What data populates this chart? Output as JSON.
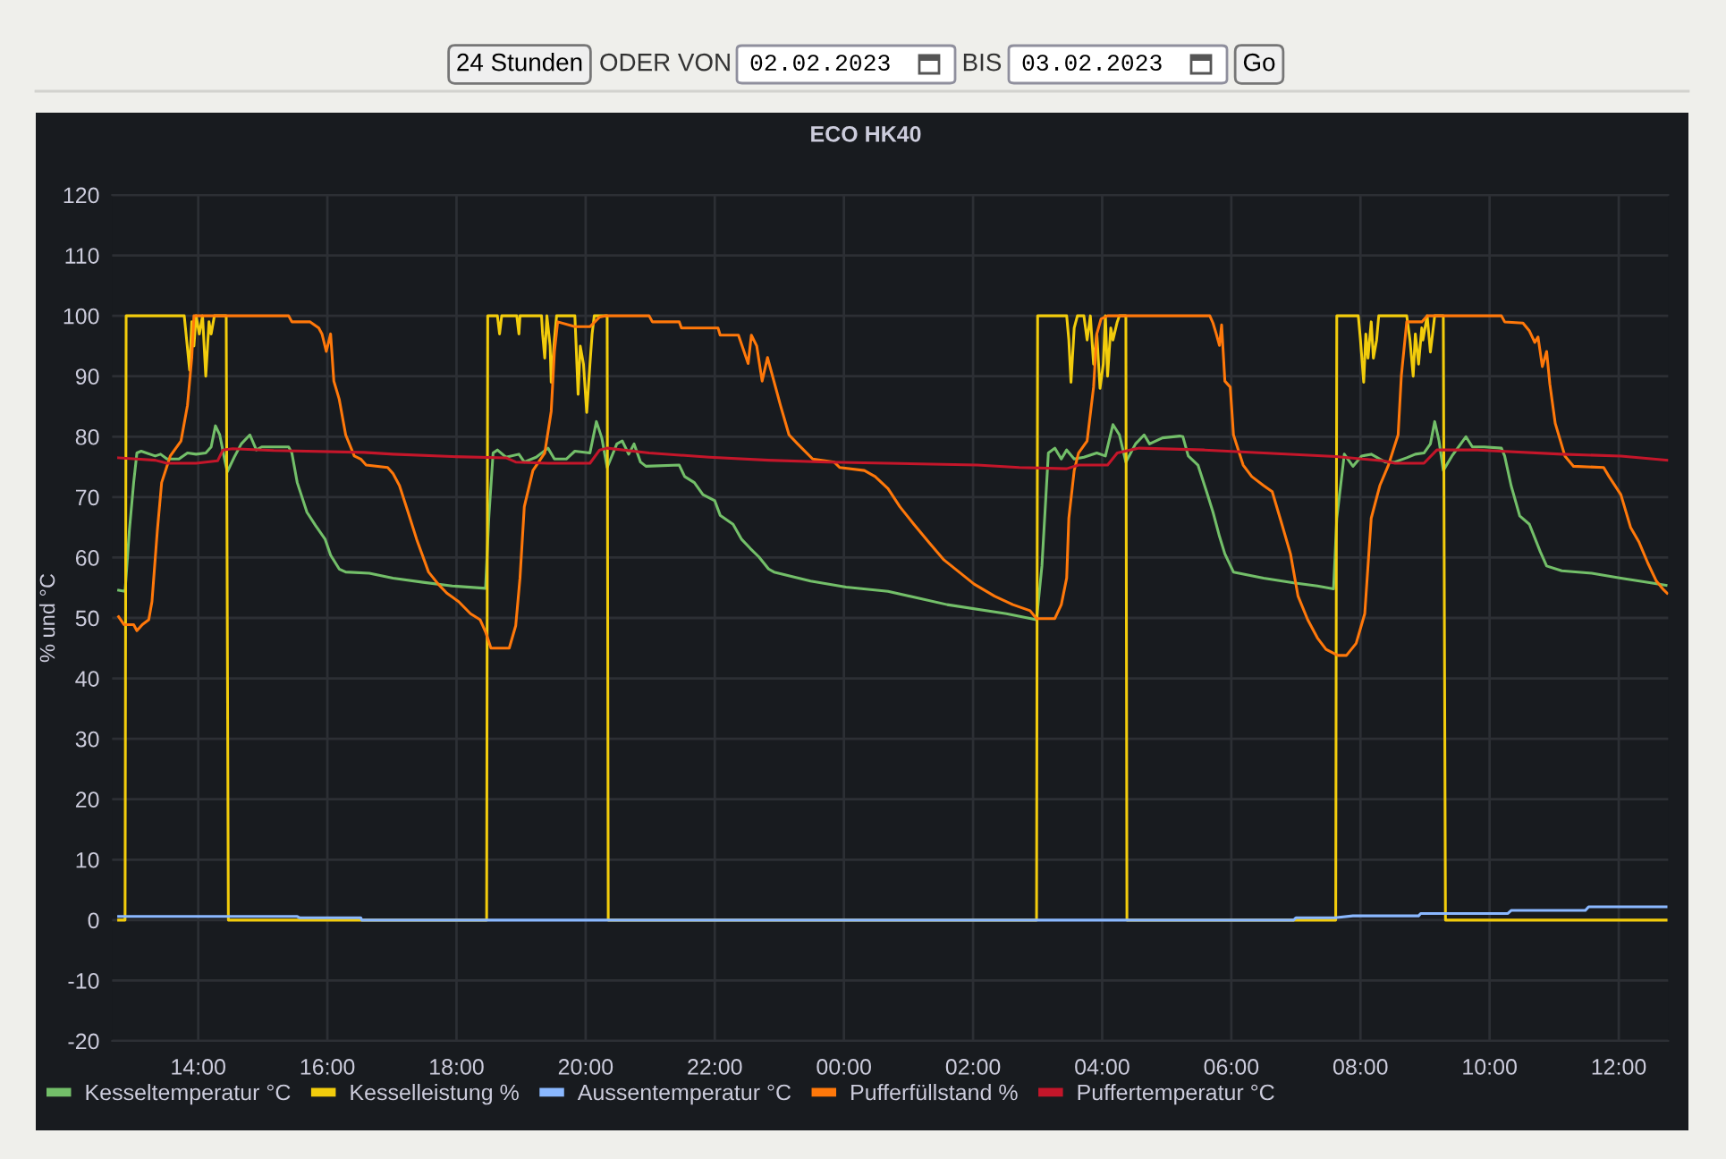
{
  "chart_data": {
    "type": "line",
    "title": "ECO HK40",
    "ylabel": "% und °C",
    "annotations": [
      "24 Stunden",
      "ODER VON",
      "02.02.2023",
      "BIS",
      "03.02.2023",
      "Go"
    ],
    "xlim": [
      "2023-02-02T12:40",
      "2023-02-03T12:46"
    ],
    "xticks": [
      {
        "value": "2023-02-02T14:00",
        "label": "14:00"
      },
      {
        "value": "2023-02-02T16:00",
        "label": "16:00"
      },
      {
        "value": "2023-02-02T18:00",
        "label": "18:00"
      },
      {
        "value": "2023-02-02T20:00",
        "label": "20:00"
      },
      {
        "value": "2023-02-02T22:00",
        "label": "22:00"
      },
      {
        "value": "2023-02-03T00:00",
        "label": "00:00"
      },
      {
        "value": "2023-02-03T02:00",
        "label": "02:00"
      },
      {
        "value": "2023-02-03T04:00",
        "label": "04:00"
      },
      {
        "value": "2023-02-03T06:00",
        "label": "06:00"
      },
      {
        "value": "2023-02-03T08:00",
        "label": "08:00"
      },
      {
        "value": "2023-02-03T10:00",
        "label": "10:00"
      },
      {
        "value": "2023-02-03T12:00",
        "label": "12:00"
      }
    ],
    "ylim": [
      -20,
      120
    ],
    "yticks": [
      -20,
      -10,
      0,
      10,
      20,
      30,
      40,
      50,
      60,
      70,
      80,
      90,
      100,
      110,
      120
    ],
    "grid": true,
    "legend": "bottom",
    "series": [
      {
        "name": "Kesseltemperatur °C",
        "color": "#73bf69",
        "x": [
          "2023-02-02T12:46",
          "2023-02-02T12:52",
          "2023-02-02T12:56",
          "2023-02-02T13:00",
          "2023-02-02T13:03",
          "2023-02-02T13:07",
          "2023-02-02T13:20",
          "2023-02-02T13:25",
          "2023-02-02T13:31",
          "2023-02-02T13:42",
          "2023-02-02T13:50",
          "2023-02-02T13:58",
          "2023-02-02T14:07",
          "2023-02-02T14:12",
          "2023-02-02T14:16",
          "2023-02-02T14:20",
          "2023-02-02T14:25",
          "2023-02-02T14:27",
          "2023-02-02T14:34",
          "2023-02-02T14:40",
          "2023-02-02T14:48",
          "2023-02-02T14:54",
          "2023-02-02T14:59",
          "2023-02-02T15:24",
          "2023-02-02T15:27",
          "2023-02-02T15:32",
          "2023-02-02T15:41",
          "2023-02-02T15:49",
          "2023-02-02T15:58",
          "2023-02-02T16:03",
          "2023-02-02T16:11",
          "2023-02-02T16:17",
          "2023-02-02T16:39",
          "2023-02-02T17:01",
          "2023-02-02T17:29",
          "2023-02-02T17:56",
          "2023-02-02T18:27",
          "2023-02-02T18:30",
          "2023-02-02T18:34",
          "2023-02-02T18:38",
          "2023-02-02T18:46",
          "2023-02-02T18:58",
          "2023-02-02T19:03",
          "2023-02-02T19:14",
          "2023-02-02T19:25",
          "2023-02-02T19:31",
          "2023-02-02T19:42",
          "2023-02-02T19:50",
          "2023-02-02T20:04",
          "2023-02-02T20:10",
          "2023-02-02T20:15",
          "2023-02-02T20:20",
          "2023-02-02T20:29",
          "2023-02-02T20:34",
          "2023-02-02T20:40",
          "2023-02-02T20:45",
          "2023-02-02T20:51",
          "2023-02-02T20:56",
          "2023-02-02T21:27",
          "2023-02-02T21:32",
          "2023-02-02T21:41",
          "2023-02-02T21:49",
          "2023-02-02T22:00",
          "2023-02-02T22:05",
          "2023-02-02T22:17",
          "2023-02-02T22:25",
          "2023-02-02T22:33",
          "2023-02-02T22:41",
          "2023-02-02T22:50",
          "2023-02-02T22:55",
          "2023-02-02T23:29",
          "2023-02-03T00:02",
          "2023-02-03T00:41",
          "2023-02-03T01:36",
          "2023-02-03T02:31",
          "2023-02-03T02:59",
          "2023-02-03T03:04",
          "2023-02-03T03:10",
          "2023-02-03T03:16",
          "2023-02-03T03:22",
          "2023-02-03T03:27",
          "2023-02-03T03:34",
          "2023-02-03T03:43",
          "2023-02-03T03:55",
          "2023-02-03T04:03",
          "2023-02-03T04:10",
          "2023-02-03T04:16",
          "2023-02-03T04:22",
          "2023-02-03T04:31",
          "2023-02-03T04:39",
          "2023-02-03T04:44",
          "2023-02-03T04:56",
          "2023-02-03T05:12",
          "2023-02-03T05:15",
          "2023-02-03T05:20",
          "2023-02-03T05:29",
          "2023-02-03T05:37",
          "2023-02-03T05:43",
          "2023-02-03T05:49",
          "2023-02-03T05:54",
          "2023-02-03T06:02",
          "2023-02-03T06:30",
          "2023-02-03T06:58",
          "2023-02-03T07:20",
          "2023-02-03T07:35",
          "2023-02-03T07:38",
          "2023-02-03T07:45",
          "2023-02-03T07:53",
          "2023-02-03T08:01",
          "2023-02-03T08:10",
          "2023-02-03T08:18",
          "2023-02-03T08:23",
          "2023-02-03T08:32",
          "2023-02-03T08:43",
          "2023-02-03T08:51",
          "2023-02-03T08:59",
          "2023-02-03T09:05",
          "2023-02-03T09:09",
          "2023-02-03T09:13",
          "2023-02-03T09:17",
          "2023-02-03T09:25",
          "2023-02-03T09:38",
          "2023-02-03T09:44",
          "2023-02-03T09:55",
          "2023-02-03T10:11",
          "2023-02-03T10:14",
          "2023-02-03T10:20",
          "2023-02-03T10:28",
          "2023-02-03T10:37",
          "2023-02-03T10:47",
          "2023-02-03T10:53",
          "2023-02-03T11:07",
          "2023-02-03T11:35",
          "2023-02-03T12:02",
          "2023-02-03T12:30",
          "2023-02-03T12:44"
        ],
        "values": [
          54.6,
          54.4,
          64.5,
          72.4,
          77.3,
          77.6,
          76.8,
          77.1,
          76.3,
          76.3,
          77.3,
          77.1,
          77.3,
          78.3,
          81.8,
          80.3,
          75.8,
          74.2,
          76.8,
          78.8,
          80.3,
          77.8,
          78.3,
          78.3,
          77.3,
          72.4,
          67.5,
          65.3,
          63.0,
          60.4,
          58.1,
          57.6,
          57.4,
          56.6,
          55.9,
          55.3,
          54.9,
          66.5,
          77.3,
          77.8,
          76.6,
          77.1,
          75.8,
          76.6,
          78.1,
          76.3,
          76.3,
          77.6,
          77.3,
          82.5,
          79.8,
          74.9,
          78.8,
          79.3,
          77.1,
          78.8,
          75.8,
          75.1,
          75.3,
          73.4,
          72.4,
          70.4,
          69.4,
          67.0,
          65.5,
          63.0,
          61.5,
          60.1,
          58.1,
          57.6,
          56.1,
          55.1,
          54.4,
          52.2,
          50.7,
          49.7,
          58.6,
          77.3,
          78.1,
          76.3,
          77.8,
          76.3,
          76.6,
          77.3,
          76.8,
          82.0,
          80.3,
          75.8,
          78.8,
          80.3,
          78.8,
          79.8,
          80.1,
          80.0,
          76.8,
          75.3,
          70.9,
          67.5,
          63.5,
          60.6,
          57.6,
          56.6,
          55.8,
          55.3,
          54.8,
          66.5,
          77.1,
          75.1,
          76.8,
          77.1,
          76.3,
          75.8,
          75.8,
          76.5,
          77.1,
          77.3,
          78.8,
          82.5,
          79.3,
          74.4,
          76.8,
          80.0,
          78.3,
          78.3,
          78.1,
          76.8,
          71.9,
          66.9,
          65.5,
          61.0,
          58.6,
          57.8,
          57.4,
          56.6,
          55.8,
          55.4
        ]
      },
      {
        "name": "Kesselleistung %",
        "color": "#f2cc0c",
        "x": [
          "2023-02-02T12:46",
          "2023-02-02T12:52",
          "2023-02-02T12:53",
          "2023-02-02T13:47",
          "2023-02-02T13:52",
          "2023-02-02T13:54",
          "2023-02-02T13:56",
          "2023-02-02T13:58",
          "2023-02-02T14:01",
          "2023-02-02T14:04",
          "2023-02-02T14:07",
          "2023-02-02T14:10",
          "2023-02-02T14:12",
          "2023-02-02T14:15",
          "2023-02-02T14:26",
          "2023-02-02T14:28",
          "2023-02-02T18:28",
          "2023-02-02T18:29",
          "2023-02-02T18:38",
          "2023-02-02T18:40",
          "2023-02-02T18:42",
          "2023-02-02T18:56",
          "2023-02-02T18:58",
          "2023-02-02T18:59",
          "2023-02-02T19:19",
          "2023-02-02T19:20",
          "2023-02-02T19:22",
          "2023-02-02T19:24",
          "2023-02-02T19:27",
          "2023-02-02T19:28",
          "2023-02-02T19:31",
          "2023-02-02T19:33",
          "2023-02-02T19:50",
          "2023-02-02T19:53",
          "2023-02-02T19:55",
          "2023-02-02T19:58",
          "2023-02-02T20:01",
          "2023-02-02T20:04",
          "2023-02-02T20:06",
          "2023-02-02T20:08",
          "2023-02-02T20:20",
          "2023-02-02T20:21",
          "2023-02-03T02:59",
          "2023-02-03T03:00",
          "2023-02-03T03:27",
          "2023-02-03T03:29",
          "2023-02-03T03:31",
          "2023-02-03T03:34",
          "2023-02-03T03:37",
          "2023-02-03T03:43",
          "2023-02-03T03:46",
          "2023-02-03T03:49",
          "2023-02-03T03:52",
          "2023-02-03T03:55",
          "2023-02-03T03:58",
          "2023-02-03T04:01",
          "2023-02-03T04:03",
          "2023-02-03T04:05",
          "2023-02-03T04:08",
          "2023-02-03T04:10",
          "2023-02-03T04:14",
          "2023-02-03T04:16",
          "2023-02-03T04:22",
          "2023-02-03T04:23",
          "2023-02-03T07:37",
          "2023-02-03T07:38",
          "2023-02-03T07:58",
          "2023-02-03T08:00",
          "2023-02-03T08:03",
          "2023-02-03T08:05",
          "2023-02-03T08:07",
          "2023-02-03T08:10",
          "2023-02-03T08:12",
          "2023-02-03T08:15",
          "2023-02-03T08:17",
          "2023-02-03T08:43",
          "2023-02-03T08:46",
          "2023-02-03T08:49",
          "2023-02-03T08:51",
          "2023-02-03T08:54",
          "2023-02-03T08:57",
          "2023-02-03T08:58",
          "2023-02-03T09:01",
          "2023-02-03T09:02",
          "2023-02-03T09:05",
          "2023-02-03T09:07",
          "2023-02-03T09:09",
          "2023-02-03T09:17",
          "2023-02-03T09:19",
          "2023-02-03T12:44"
        ],
        "values": [
          0,
          0,
          100,
          100,
          91,
          99,
          95,
          100,
          97,
          100,
          90,
          99,
          97,
          100,
          100,
          0,
          0,
          100,
          100,
          97,
          100,
          100,
          97,
          100,
          100,
          97,
          93,
          100,
          95,
          89,
          96,
          100,
          100,
          87,
          95,
          92,
          84,
          92,
          97,
          100,
          100,
          0,
          0,
          100,
          100,
          96,
          89,
          98,
          100,
          100,
          96,
          100,
          92,
          97,
          88,
          92,
          100,
          90,
          98,
          96,
          99,
          100,
          100,
          0,
          0,
          100,
          100,
          96,
          89,
          97,
          93,
          99,
          93,
          96,
          100,
          100,
          96,
          90,
          97,
          92,
          98,
          96,
          99,
          100,
          94,
          97,
          100,
          100,
          0,
          0
        ]
      },
      {
        "name": "Aussentemperatur °C",
        "color": "#8ab8ff",
        "x": [
          "2023-02-02T12:46",
          "2023-02-02T15:32",
          "2023-02-02T15:34",
          "2023-02-02T16:31",
          "2023-02-02T16:32",
          "2023-02-03T06:58",
          "2023-02-03T07:00",
          "2023-02-03T07:36",
          "2023-02-03T07:53",
          "2023-02-03T08:54",
          "2023-02-03T08:56",
          "2023-02-03T10:17",
          "2023-02-03T10:20",
          "2023-02-03T11:29",
          "2023-02-03T11:32",
          "2023-02-03T12:44"
        ],
        "values": [
          0.6,
          0.6,
          0.4,
          0.4,
          0,
          0,
          0.4,
          0.4,
          0.7,
          0.7,
          1.1,
          1.1,
          1.6,
          1.6,
          2.2,
          2.2
        ]
      },
      {
        "name": "Pufferfüllstand %",
        "color": "#ff780a",
        "x": [
          "2023-02-02T12:46",
          "2023-02-02T12:51",
          "2023-02-02T13:00",
          "2023-02-02T13:03",
          "2023-02-02T13:08",
          "2023-02-02T13:14",
          "2023-02-02T13:17",
          "2023-02-02T13:22",
          "2023-02-02T13:26",
          "2023-02-02T13:34",
          "2023-02-02T13:44",
          "2023-02-02T13:50",
          "2023-02-02T13:54",
          "2023-02-02T13:56",
          "2023-02-02T15:24",
          "2023-02-02T15:27",
          "2023-02-02T15:44",
          "2023-02-02T15:52",
          "2023-02-02T15:55",
          "2023-02-02T15:59",
          "2023-02-02T16:03",
          "2023-02-02T16:06",
          "2023-02-02T16:11",
          "2023-02-02T16:17",
          "2023-02-02T16:25",
          "2023-02-02T16:31",
          "2023-02-02T16:36",
          "2023-02-02T16:56",
          "2023-02-02T17:01",
          "2023-02-02T17:07",
          "2023-02-02T17:15",
          "2023-02-02T17:23",
          "2023-02-02T17:34",
          "2023-02-02T17:43",
          "2023-02-02T17:51",
          "2023-02-02T18:02",
          "2023-02-02T18:13",
          "2023-02-02T18:22",
          "2023-02-02T18:27",
          "2023-02-02T18:32",
          "2023-02-02T18:49",
          "2023-02-02T18:55",
          "2023-02-02T18:59",
          "2023-02-02T19:03",
          "2023-02-02T19:11",
          "2023-02-02T19:22",
          "2023-02-02T19:28",
          "2023-02-02T19:31",
          "2023-02-02T19:34",
          "2023-02-02T19:50",
          "2023-02-02T20:04",
          "2023-02-02T20:13",
          "2023-02-02T20:18",
          "2023-02-02T20:59",
          "2023-02-02T21:02",
          "2023-02-02T21:27",
          "2023-02-02T21:29",
          "2023-02-02T22:03",
          "2023-02-02T22:05",
          "2023-02-02T22:22",
          "2023-02-02T22:31",
          "2023-02-02T22:34",
          "2023-02-02T22:39",
          "2023-02-02T22:44",
          "2023-02-02T22:49",
          "2023-02-02T23:01",
          "2023-02-02T23:09",
          "2023-02-02T23:17",
          "2023-02-02T23:31",
          "2023-02-02T23:51",
          "2023-02-02T23:56",
          "2023-02-03T00:19",
          "2023-02-03T00:29",
          "2023-02-03T00:41",
          "2023-02-03T00:52",
          "2023-02-03T01:05",
          "2023-02-03T01:19",
          "2023-02-03T01:33",
          "2023-02-03T01:47",
          "2023-02-03T02:01",
          "2023-02-03T02:20",
          "2023-02-03T02:37",
          "2023-02-03T02:53",
          "2023-02-03T02:59",
          "2023-02-03T03:16",
          "2023-02-03T03:22",
          "2023-02-03T03:27",
          "2023-02-03T03:29",
          "2023-02-03T03:34",
          "2023-02-03T03:38",
          "2023-02-03T03:46",
          "2023-02-03T03:52",
          "2023-02-03T03:55",
          "2023-02-03T03:59",
          "2023-02-03T04:05",
          "2023-02-03T05:40",
          "2023-02-03T05:43",
          "2023-02-03T05:46",
          "2023-02-03T05:49",
          "2023-02-03T05:51",
          "2023-02-03T05:54",
          "2023-02-03T05:59",
          "2023-02-03T06:02",
          "2023-02-03T06:11",
          "2023-02-03T06:19",
          "2023-02-03T06:30",
          "2023-02-03T06:38",
          "2023-02-03T06:47",
          "2023-02-03T06:55",
          "2023-02-03T07:02",
          "2023-02-03T07:11",
          "2023-02-03T07:20",
          "2023-02-03T07:28",
          "2023-02-03T07:39",
          "2023-02-03T07:47",
          "2023-02-03T07:56",
          "2023-02-03T08:04",
          "2023-02-03T08:10",
          "2023-02-03T08:18",
          "2023-02-03T08:26",
          "2023-02-03T08:35",
          "2023-02-03T08:38",
          "2023-02-03T08:43",
          "2023-02-03T08:57",
          "2023-02-03T09:02",
          "2023-02-03T10:11",
          "2023-02-03T10:14",
          "2023-02-03T10:31",
          "2023-02-03T10:37",
          "2023-02-03T10:42",
          "2023-02-03T10:45",
          "2023-02-03T10:49",
          "2023-02-03T10:53",
          "2023-02-03T10:56",
          "2023-02-03T11:01",
          "2023-02-03T11:10",
          "2023-02-03T11:18",
          "2023-02-03T11:46",
          "2023-02-03T11:51",
          "2023-02-03T12:02",
          "2023-02-03T12:11",
          "2023-02-03T12:19",
          "2023-02-03T12:27",
          "2023-02-03T12:35",
          "2023-02-03T12:41",
          "2023-02-03T12:45"
        ],
        "values": [
          50.2,
          48.9,
          48.9,
          47.9,
          48.9,
          49.7,
          52.7,
          64.5,
          72.4,
          76.8,
          79.3,
          85.2,
          93.1,
          100,
          100,
          99.0,
          99.0,
          98.0,
          97.0,
          94.1,
          97.0,
          89.2,
          86.2,
          80.3,
          76.8,
          76.3,
          75.3,
          74.9,
          73.9,
          71.9,
          67.5,
          63.0,
          57.6,
          55.6,
          54.1,
          52.7,
          50.7,
          49.7,
          47.7,
          45.0,
          45.0,
          48.7,
          56.6,
          68.4,
          74.4,
          77.3,
          84.2,
          94.1,
          99.0,
          98.2,
          98.2,
          99.8,
          100,
          100,
          99.0,
          99.0,
          98.0,
          98.0,
          96.8,
          96.8,
          92.1,
          96.8,
          95.0,
          89.2,
          93.1,
          85.2,
          80.3,
          78.8,
          76.3,
          75.8,
          74.9,
          74.4,
          73.4,
          71.4,
          68.4,
          65.5,
          62.5,
          59.6,
          57.6,
          55.6,
          53.6,
          52.2,
          51.2,
          49.9,
          49.9,
          52.2,
          56.6,
          66.5,
          74.4,
          77.3,
          79.3,
          88.2,
          97.0,
          99.5,
          100,
          100,
          98.8,
          97.0,
          95.1,
          98.5,
          89.2,
          88.2,
          80.3,
          75.3,
          73.4,
          71.9,
          70.9,
          65.5,
          60.6,
          53.6,
          49.7,
          46.7,
          44.8,
          43.8,
          43.8,
          45.8,
          50.7,
          66.5,
          71.9,
          75.3,
          80.3,
          90.1,
          99.0,
          99.0,
          100,
          100,
          99.0,
          98.8,
          97.5,
          95.6,
          96.5,
          91.6,
          94.1,
          88.7,
          82.2,
          76.8,
          75.1,
          74.9,
          73.4,
          70.4,
          65.0,
          62.5,
          59.1,
          56.1,
          54.8,
          54.1
        ]
      },
      {
        "name": "Puffertemperatur °C",
        "color": "#c4162a",
        "x": [
          "2023-02-02T12:46",
          "2023-02-02T13:20",
          "2023-02-02T13:31",
          "2023-02-02T13:58",
          "2023-02-02T14:18",
          "2023-02-02T14:23",
          "2023-02-02T14:32",
          "2023-02-02T15:10",
          "2023-02-02T16:34",
          "2023-02-02T17:01",
          "2023-02-02T17:56",
          "2023-02-02T18:46",
          "2023-02-02T18:55",
          "2023-02-02T19:25",
          "2023-02-02T20:04",
          "2023-02-02T20:13",
          "2023-02-02T20:20",
          "2023-02-02T20:59",
          "2023-02-02T21:55",
          "2023-02-02T22:50",
          "2023-02-02T23:45",
          "2023-02-03T00:41",
          "2023-02-03T02:04",
          "2023-02-03T02:43",
          "2023-02-03T03:27",
          "2023-02-03T03:38",
          "2023-02-03T04:05",
          "2023-02-03T04:14",
          "2023-02-03T04:34",
          "2023-02-03T05:35",
          "2023-02-03T06:30",
          "2023-02-03T07:37",
          "2023-02-03T08:21",
          "2023-02-03T08:32",
          "2023-02-03T08:59",
          "2023-02-03T09:11",
          "2023-02-03T09:49",
          "2023-02-03T11:07",
          "2023-02-03T12:02",
          "2023-02-03T12:45"
        ],
        "values": [
          76.5,
          76.1,
          75.6,
          75.6,
          76.0,
          77.8,
          78.0,
          77.7,
          77.4,
          77.1,
          76.7,
          76.5,
          75.8,
          75.6,
          75.6,
          77.8,
          78.1,
          77.3,
          76.6,
          76.1,
          75.8,
          75.6,
          75.3,
          74.9,
          74.7,
          75.3,
          75.3,
          77.3,
          78.1,
          77.8,
          77.3,
          76.7,
          76.0,
          75.6,
          75.6,
          77.8,
          77.8,
          77.1,
          76.8,
          76.1
        ]
      }
    ]
  }
}
